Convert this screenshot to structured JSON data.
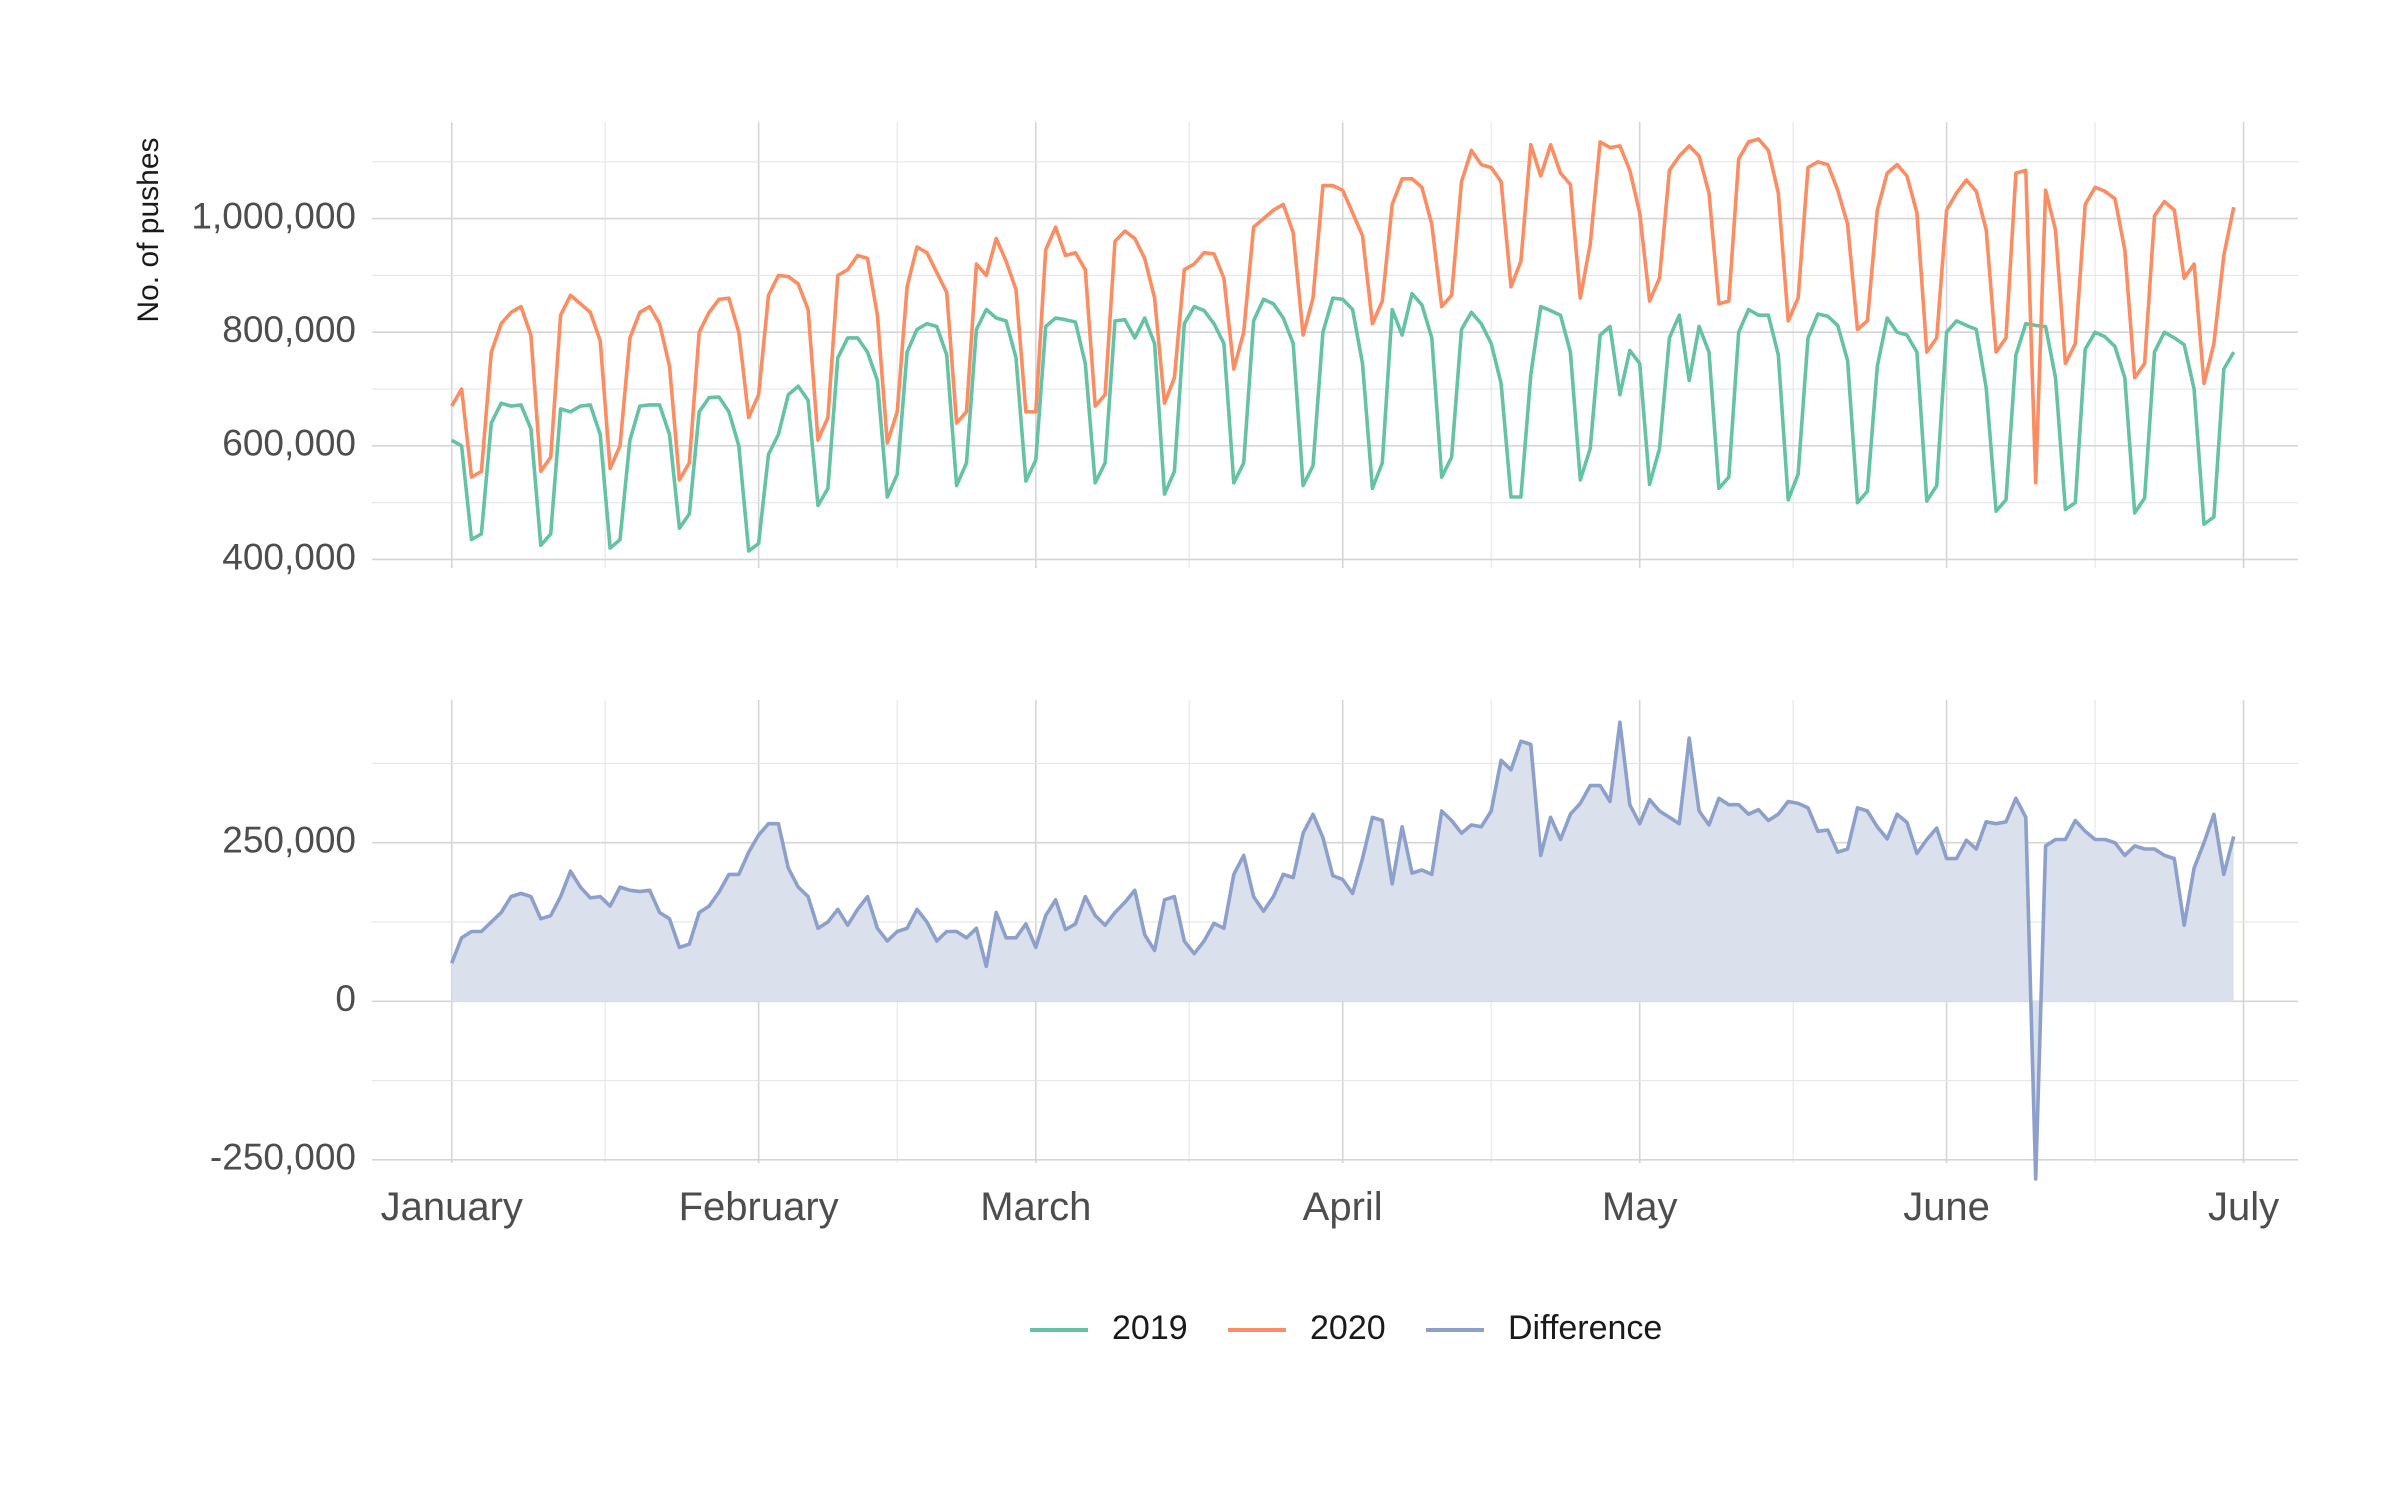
{
  "chart_data": {
    "type": "line",
    "ylabel": "No. of pushes",
    "xlabel": "",
    "title": "",
    "x_start": "2019-01-01",
    "x_end": "2019-06-29",
    "x_ticks": [
      {
        "label": "January",
        "date": "2019-01-01"
      },
      {
        "label": "February",
        "date": "2019-02-01"
      },
      {
        "label": "March",
        "date": "2019-03-01"
      },
      {
        "label": "April",
        "date": "2019-04-01"
      },
      {
        "label": "May",
        "date": "2019-05-01"
      },
      {
        "label": "June",
        "date": "2019-06-01"
      },
      {
        "label": "July",
        "date": "2019-07-01"
      }
    ],
    "grid": true,
    "legend_position": "bottom",
    "legend": [
      "2019",
      "2020",
      "Difference"
    ],
    "colors": {
      "2019": "#66c2a5",
      "2020": "#fc8d62",
      "Difference": "#8da0cb",
      "difference_fill": "#dbe0ed"
    },
    "panels": [
      {
        "name": "totals",
        "ylim": [
          385000,
          1170000
        ],
        "y_ticks": [
          400000,
          600000,
          800000,
          1000000
        ],
        "y_tick_labels": [
          "400,000",
          "600,000",
          "800,000",
          "1,000,000"
        ],
        "series": [
          {
            "name": "2019",
            "values": [
              610000,
              600000,
              435000,
              445000,
              640000,
              675000,
              670000,
              672000,
              630000,
              425000,
              445000,
              665000,
              660000,
              670000,
              672000,
              620000,
              420000,
              435000,
              610000,
              670000,
              672000,
              672000,
              620000,
              455000,
              480000,
              660000,
              685000,
              686000,
              660000,
              600000,
              415000,
              428000,
              585000,
              620000,
              690000,
              705000,
              680000,
              495000,
              525000,
              755000,
              790000,
              790000,
              765000,
              715000,
              510000,
              550000,
              765000,
              805000,
              815000,
              810000,
              760000,
              530000,
              570000,
              805000,
              840000,
              825000,
              820000,
              755000,
              538000,
              575000,
              810000,
              825000,
              822000,
              818000,
              745000,
              535000,
              570000,
              820000,
              822000,
              790000,
              825000,
              780000,
              515000,
              555000,
              815000,
              845000,
              838000,
              815000,
              780000,
              535000,
              570000,
              820000,
              858000,
              850000,
              825000,
              780000,
              530000,
              565000,
              800000,
              860000,
              858000,
              840000,
              745000,
              525000,
              570000,
              840000,
              795000,
              868000,
              848000,
              790000,
              545000,
              580000,
              805000,
              835000,
              815000,
              780000,
              710000,
              510000,
              510000,
              725000,
              845000,
              838000,
              830000,
              765000,
              540000,
              595000,
              795000,
              810000,
              690000,
              768000,
              745000,
              532000,
              595000,
              790000,
              830000,
              715000,
              810000,
              765000,
              525000,
              545000,
              800000,
              840000,
              830000,
              830000,
              760000,
              505000,
              550000,
              790000,
              832000,
              828000,
              812000,
              750000,
              500000,
              520000,
              740000,
              825000,
              800000,
              795000,
              765000,
              503000,
              530000,
              800000,
              820000,
              812000,
              805000,
              702000,
              485000,
              505000,
              760000,
              815000,
              812000,
              810000,
              720000,
              488000,
              500000,
              770000,
              800000,
              792000,
              775000,
              720000,
              482000,
              508000,
              765000,
              800000,
              790000,
              778000,
              700000,
              462000,
              475000,
              735000,
              765000
            ]
          },
          {
            "name": "2020",
            "values": [
              670000,
              700000,
              545000,
              555000,
              765000,
              815000,
              835000,
              845000,
              795000,
              555000,
              580000,
              830000,
              865000,
              850000,
              835000,
              785000,
              560000,
              600000,
              790000,
              835000,
              845000,
              815000,
              740000,
              540000,
              570000,
              800000,
              835000,
              858000,
              860000,
              800000,
              650000,
              690000,
              865000,
              900000,
              898000,
              885000,
              840000,
              610000,
              650000,
              900000,
              910000,
              935000,
              930000,
              830000,
              605000,
              660000,
              880000,
              950000,
              940000,
              905000,
              870000,
              640000,
              660000,
              920000,
              900000,
              965000,
              925000,
              875000,
              660000,
              660000,
              945000,
              985000,
              935000,
              940000,
              910000,
              670000,
              690000,
              960000,
              978000,
              965000,
              930000,
              860000,
              675000,
              720000,
              910000,
              920000,
              940000,
              938000,
              895000,
              735000,
              800000,
              985000,
              1000000,
              1015000,
              1025000,
              975000,
              795000,
              860000,
              1058000,
              1058000,
              1050000,
              1010000,
              970000,
              815000,
              855000,
              1025000,
              1070000,
              1070000,
              1055000,
              990000,
              845000,
              865000,
              1065000,
              1120000,
              1095000,
              1090000,
              1065000,
              880000,
              925000,
              1130000,
              1075000,
              1130000,
              1080000,
              1060000,
              860000,
              955000,
              1135000,
              1125000,
              1128000,
              1085000,
              1010000,
              855000,
              895000,
              1085000,
              1110000,
              1128000,
              1110000,
              1045000,
              850000,
              855000,
              1105000,
              1135000,
              1140000,
              1120000,
              1045000,
              820000,
              860000,
              1090000,
              1100000,
              1095000,
              1050000,
              990000,
              805000,
              820000,
              1015000,
              1080000,
              1095000,
              1075000,
              1010000,
              765000,
              790000,
              1015000,
              1045000,
              1068000,
              1048000,
              980000,
              765000,
              790000,
              1080000,
              1085000,
              535000,
              1050000,
              980000,
              745000,
              780000,
              1025000,
              1055000,
              1048000,
              1035000,
              945000,
              720000,
              745000,
              1005000,
              1030000,
              1015000,
              895000,
              920000,
              710000,
              780000,
              935000,
              1020000
            ]
          }
        ]
      },
      {
        "name": "difference",
        "ylim": [
          -255000,
          475000
        ],
        "y_ticks": [
          -250000,
          0,
          250000
        ],
        "y_tick_labels": [
          "-250,000",
          "0",
          "250,000"
        ],
        "series": [
          {
            "name": "Difference",
            "values": [
              60000,
              100000,
              110000,
              110000,
              125000,
              140000,
              165000,
              170000,
              165000,
              130000,
              135000,
              165000,
              205000,
              180000,
              163000,
              165000,
              150000,
              180000,
              175000,
              173000,
              175000,
              140000,
              130000,
              85000,
              90000,
              140000,
              150000,
              172000,
              200000,
              200000,
              235000,
              262000,
              280000,
              280000,
              210000,
              180000,
              165000,
              115000,
              125000,
              145000,
              120000,
              145000,
              165000,
              115000,
              95000,
              110000,
              115000,
              145000,
              125000,
              95000,
              110000,
              110000,
              100000,
              115000,
              55000,
              140000,
              100000,
              100000,
              122000,
              85000,
              135000,
              160000,
              113000,
              122000,
              165000,
              135000,
              120000,
              140000,
              156000,
              175000,
              105000,
              80000,
              160000,
              165000,
              95000,
              75000,
              95000,
              123000,
              115000,
              200000,
              230000,
              165000,
              142000,
              165000,
              200000,
              195000,
              265000,
              295000,
              258000,
              198000,
              192000,
              170000,
              225000,
              290000,
              285000,
              185000,
              275000,
              202000,
              207000,
              200000,
              300000,
              285000,
              265000,
              278000,
              275000,
              300000,
              380000,
              365000,
              410000,
              405000,
              230000,
              290000,
              255000,
              295000,
              312000,
              340000,
              340000,
              315000,
              440000,
              310000,
              280000,
              318000,
              300000,
              290000,
              280000,
              415000,
              300000,
              278000,
              320000,
              310000,
              310000,
              295000,
              302000,
              285000,
              295000,
              315000,
              312000,
              305000,
              268000,
              270000,
              235000,
              240000,
              305000,
              300000,
              275000,
              256000,
              295000,
              282000,
              233000,
              255000,
              273000,
              225000,
              225000,
              254000,
              240000,
              283000,
              280000,
              283000,
              320000,
              290000,
              -280000,
              245000,
              255000,
              255000,
              285000,
              268000,
              255000,
              255000,
              250000,
              230000,
              245000,
              240000,
              240000,
              230000,
              225000,
              120000,
              210000,
              250000,
              295000,
              200000,
              260000
            ]
          }
        ]
      }
    ]
  }
}
